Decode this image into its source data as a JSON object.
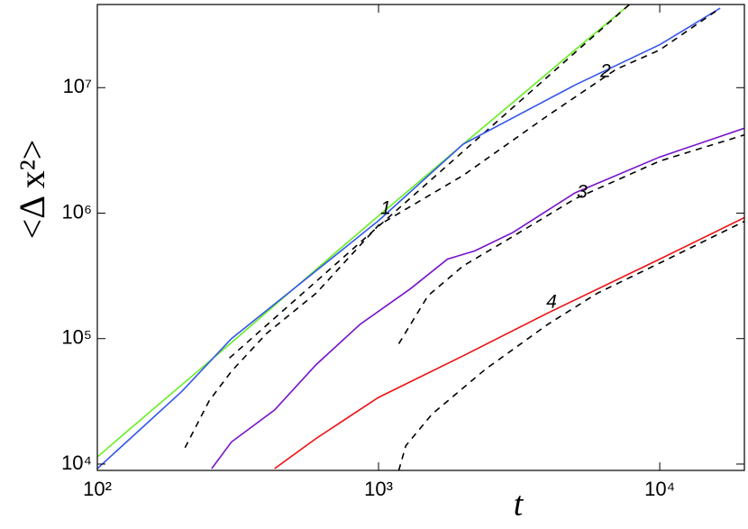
{
  "chart_data": {
    "type": "line",
    "x_label": "t",
    "y_label": "<Δ x²>",
    "xscale": "log",
    "yscale": "log",
    "xlim": [
      100,
      20000
    ],
    "ylim": [
      8900,
      46000000
    ],
    "xticks": [
      {
        "value": 100,
        "label": "10²"
      },
      {
        "value": 1000,
        "label": "10³"
      },
      {
        "value": 10000,
        "label": "10⁴"
      }
    ],
    "yticks": [
      {
        "value": 10000,
        "label": "10⁴"
      },
      {
        "value": 100000,
        "label": "10⁵"
      },
      {
        "value": 1000000,
        "label": "10⁶"
      },
      {
        "value": 10000000,
        "label": "10⁷"
      }
    ],
    "annotations": [
      "1",
      "2",
      "3",
      "4"
    ],
    "series": [
      {
        "color": "#66ee22",
        "linestyle": "solid",
        "x": [
          100,
          150,
          200,
          300,
          500,
          700,
          1000,
          1500,
          2000,
          3000,
          5000,
          7800
        ],
        "values": [
          11400,
          24800,
          43000,
          93000,
          250000,
          480000,
          950000,
          2050000,
          3550000,
          7600000,
          20000000,
          46000000
        ]
      },
      {
        "color": "#000000",
        "linestyle": "dashed",
        "x": [
          295,
          7800
        ],
        "values": [
          70000,
          46000000
        ]
      },
      {
        "color": "#3355ee",
        "linestyle": "solid",
        "x": [
          100,
          200,
          300,
          500,
          1000,
          2000,
          5000,
          10000,
          16400
        ],
        "values": [
          9200,
          38000,
          100000,
          250000,
          870000,
          3550000,
          10500000,
          22000000,
          43000000
        ]
      },
      {
        "color": "#000000",
        "linestyle": "dashed",
        "x": [
          205,
          250,
          300,
          400,
          600,
          1000,
          2000,
          4000,
          7000,
          10000,
          16400
        ],
        "values": [
          13500,
          32000,
          55000,
          110000,
          230000,
          800000,
          2000000,
          6000000,
          14000000,
          20000000,
          43000000
        ]
      },
      {
        "color": "#7711cc",
        "linestyle": "solid",
        "x": [
          255,
          300,
          427,
          600,
          860,
          1300,
          1760,
          2200,
          3000,
          5000,
          10000,
          20000
        ],
        "values": [
          9200,
          15000,
          27000,
          62000,
          130000,
          250000,
          430000,
          500000,
          700000,
          1450000,
          2800000,
          4750000
        ]
      },
      {
        "color": "#000000",
        "linestyle": "dashed",
        "x": [
          1180,
          1500,
          2000,
          3000,
          5000,
          10000,
          20000
        ],
        "values": [
          91000,
          220000,
          380000,
          650000,
          1300000,
          2600000,
          4200000
        ]
      },
      {
        "color": "#ee1111",
        "linestyle": "solid",
        "x": [
          427,
          600,
          1000,
          2000,
          4000,
          10000,
          20000
        ],
        "values": [
          9200,
          16000,
          34000,
          73000,
          160000,
          430000,
          920000
        ]
      },
      {
        "color": "#000000",
        "linestyle": "dashed",
        "x": [
          1180,
          1250,
          1550,
          2400,
          4000,
          6000,
          10000,
          20000
        ],
        "values": [
          8900,
          14000,
          25000,
          57000,
          130000,
          230000,
          400000,
          860000
        ]
      }
    ]
  }
}
